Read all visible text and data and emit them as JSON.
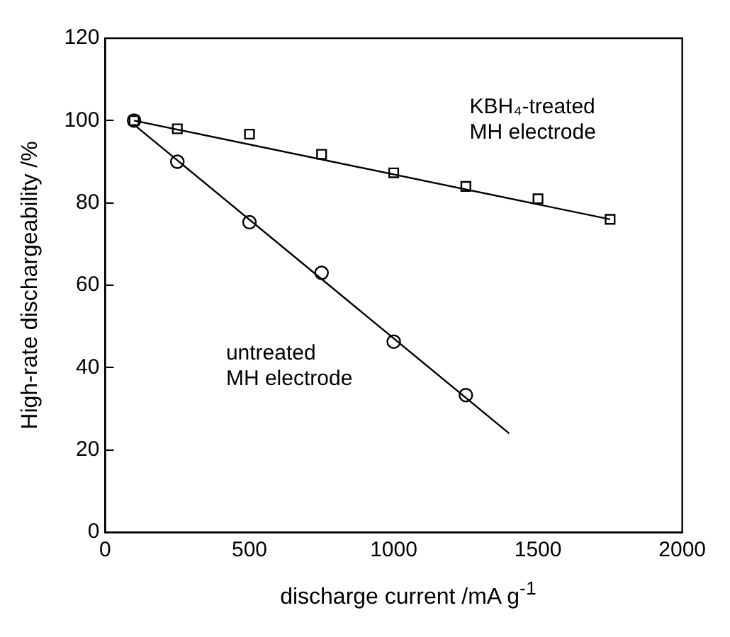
{
  "chart_data": {
    "type": "scatter",
    "xlabel": "discharge current /mA g$^{-1}$",
    "ylabel": "High-rate dischargeability /%",
    "xlim": [
      0,
      2000
    ],
    "xticks": [
      0,
      500,
      1000,
      1500,
      2000
    ],
    "ylim": [
      0,
      120
    ],
    "yticks": [
      0,
      20,
      40,
      60,
      80,
      100,
      120
    ],
    "grid": false,
    "legend": false,
    "series": [
      {
        "name": "untreated MH electrode",
        "type": "scatter",
        "marker": "circle",
        "color": "#000000",
        "x": [
          100,
          250,
          500,
          750,
          1000,
          1250
        ],
        "values": [
          100,
          90,
          75.3,
          63,
          46.3,
          33.3
        ]
      },
      {
        "name": "KBH₄-treated MH electrode",
        "type": "scatter",
        "marker": "square",
        "color": "#000000",
        "x": [
          100,
          250,
          500,
          750,
          1000,
          1250,
          1500,
          1750
        ],
        "values": [
          100,
          98,
          96.7,
          91.8,
          87.3,
          84,
          81,
          76
        ]
      },
      {
        "type": "line",
        "marker": "none",
        "color": "#000000",
        "x": [
          100,
          1750
        ],
        "values": [
          100,
          76
        ]
      },
      {
        "type": "line",
        "marker": "none",
        "color": "#000000",
        "x": [
          100,
          1400
        ],
        "values": [
          99,
          24
        ]
      }
    ]
  }
}
